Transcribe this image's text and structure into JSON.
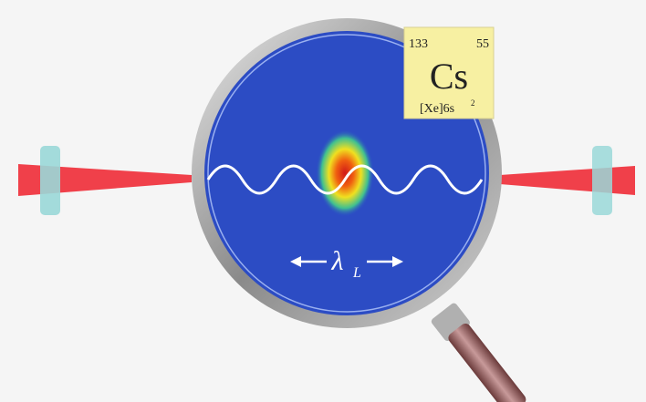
{
  "element": {
    "mass_number": "133",
    "atomic_number": "55",
    "symbol": "Cs",
    "configuration": "[Xe]6s",
    "configuration_exponent": "2"
  },
  "wavelength": {
    "symbol": "λ",
    "subscript": "L"
  }
}
